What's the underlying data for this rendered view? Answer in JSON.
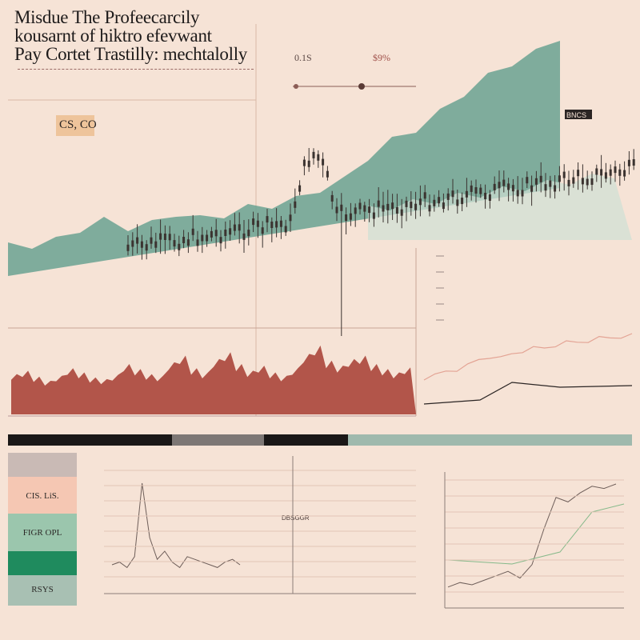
{
  "header": {
    "title_lines": [
      "Misdue The Profeecarcily",
      "kousarnt of hiktro efevwant",
      "Pay Cortet Trastilly: mechtalolly"
    ],
    "topline_values": [
      "0.1S",
      "$9%"
    ]
  },
  "legend": {
    "label": "CS, CO"
  },
  "side_labels": {
    "top_right_badge": "BNCS"
  },
  "swatches": [
    {
      "label": "",
      "color": "#c9bab5"
    },
    {
      "label": "CIS. LiS.",
      "color": "#f5c7b3"
    },
    {
      "label": "FIGR OPL",
      "color": "#9bc6ad"
    },
    {
      "label": "",
      "color": "#1f8b5e"
    },
    {
      "label": "RSYS",
      "color": "#a8c0b3"
    }
  ],
  "bottom_center_label": "DBSGGR",
  "colors": {
    "background": "#f6e3d6",
    "sage_area": "#6aa292",
    "pale_area": "#cfe0d4",
    "red_volume": "#b2554a",
    "candle": "#3b3330",
    "pink_line": "#e3a394",
    "green_line": "#86b98a",
    "accent_black": "#1a1717"
  },
  "chart_data": [
    {
      "type": "area",
      "series": [
        {
          "values": [
            38,
            40,
            45,
            60,
            70,
            62,
            66,
            80,
            72,
            78,
            86,
            90,
            96,
            110,
            120,
            150,
            170,
            185,
            205,
            230,
            250,
            268,
            280,
            300
          ]
        }
      ]
    },
    {
      "type": "bar",
      "series": [
        {
          "values": [
            48,
            52,
            45,
            40,
            46,
            55,
            50,
            44,
            42,
            47,
            60,
            54,
            48,
            46,
            62,
            70,
            55,
            50,
            66,
            74,
            60,
            52,
            58,
            50,
            46,
            55,
            72,
            82,
            64,
            58,
            66,
            70,
            60,
            54,
            50,
            56
          ]
        }
      ]
    },
    {
      "type": "line",
      "series": [
        {
          "values": [
            10,
            14,
            18,
            22,
            28,
            34,
            40,
            38,
            42,
            48,
            52,
            50,
            56,
            60,
            58,
            62,
            66,
            64,
            68,
            70
          ]
        }
      ]
    },
    {
      "type": "line",
      "series": [
        {
          "values": [
            20,
            22,
            18,
            26,
            80,
            40,
            24,
            30,
            22,
            18,
            26,
            24,
            22,
            20,
            18,
            22,
            24,
            20
          ]
        }
      ]
    },
    {
      "type": "line",
      "series": [
        {
          "values": [
            8,
            12,
            10,
            14,
            18,
            22,
            16,
            28,
            60,
            88,
            84,
            92,
            98,
            96,
            100
          ]
        }
      ]
    }
  ]
}
